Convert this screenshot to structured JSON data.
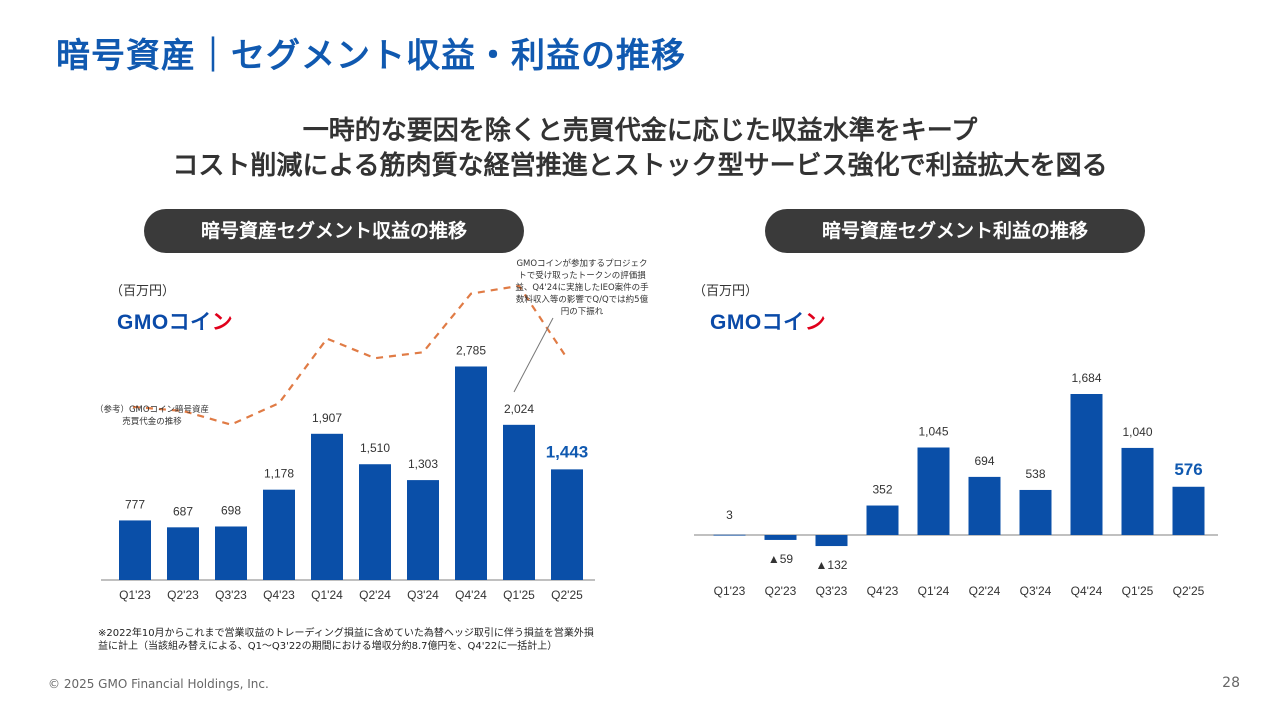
{
  "page_title": "暗号資産｜セグメント収益・利益の推移",
  "subtitle_line1": "一時的な要因を除くと売買代金に応じた収益水準をキープ",
  "subtitle_line2": "コスト削減による筋肉質な経営推進とストック型サービス強化で利益拡大を図る",
  "logo": {
    "main": "GMO",
    "koin": "コイ",
    "n": "ン"
  },
  "colors": {
    "title": "#1059b0",
    "bar": "#0a4fa8",
    "dashed_line": "#e07b45",
    "pill_bg": "#3a3a3a",
    "highlight_label": "#1059b0"
  },
  "callout_note": "GMOコインが参加するプロジェクトで受け取ったトークンの評価損益、Q4'24に実施したIEO案件の手数料収入等の影響でQ/Qでは約5億円の下振れ",
  "reference_note": "（参考）GMOコイン暗号資産売買代金の推移",
  "footnote": "※2022年10月からこれまで営業収益のトレーディング損益に含めていた為替ヘッジ取引に伴う損益を営業外損益に計上（当該組み替えによる、Q1～Q3'22の期間における増収分約8.7億円を、Q4'22に一括計上）",
  "copyright": "© 2025 GMO Financial Holdings, Inc.",
  "page_number": "28",
  "chart_data": [
    {
      "type": "bar",
      "title": "暗号資産セグメント収益の推移",
      "unit": "（百万円）",
      "categories": [
        "Q1'23",
        "Q2'23",
        "Q3'23",
        "Q4'23",
        "Q1'24",
        "Q2'24",
        "Q3'24",
        "Q4'24",
        "Q1'25",
        "Q2'25"
      ],
      "values": [
        777,
        687,
        698,
        1178,
        1907,
        1510,
        1303,
        2785,
        2024,
        1443
      ],
      "value_labels": [
        "777",
        "687",
        "698",
        "1,178",
        "1,907",
        "1,510",
        "1,303",
        "2,785",
        "2,024",
        "1,443"
      ],
      "ylim": [
        0,
        3000
      ],
      "reference_series": {
        "label": "（参考）GMOコイン暗号資産売買代金の推移",
        "style": "dashed",
        "relative_values": [
          0.45,
          0.43,
          0.36,
          0.47,
          0.8,
          0.7,
          0.73,
          1.03,
          1.07,
          0.7
        ]
      }
    },
    {
      "type": "bar",
      "title": "暗号資産セグメント利益の推移",
      "unit": "（百万円）",
      "categories": [
        "Q1'23",
        "Q2'23",
        "Q3'23",
        "Q4'23",
        "Q1'24",
        "Q2'24",
        "Q3'24",
        "Q4'24",
        "Q1'25",
        "Q2'25"
      ],
      "values": [
        3,
        -59,
        -132,
        352,
        1045,
        694,
        538,
        1684,
        1040,
        576
      ],
      "value_labels": [
        "3",
        "▲59",
        "▲132",
        "352",
        "1,045",
        "694",
        "538",
        "1,684",
        "1,040",
        "576"
      ],
      "ylim": [
        -200,
        1900
      ]
    }
  ]
}
